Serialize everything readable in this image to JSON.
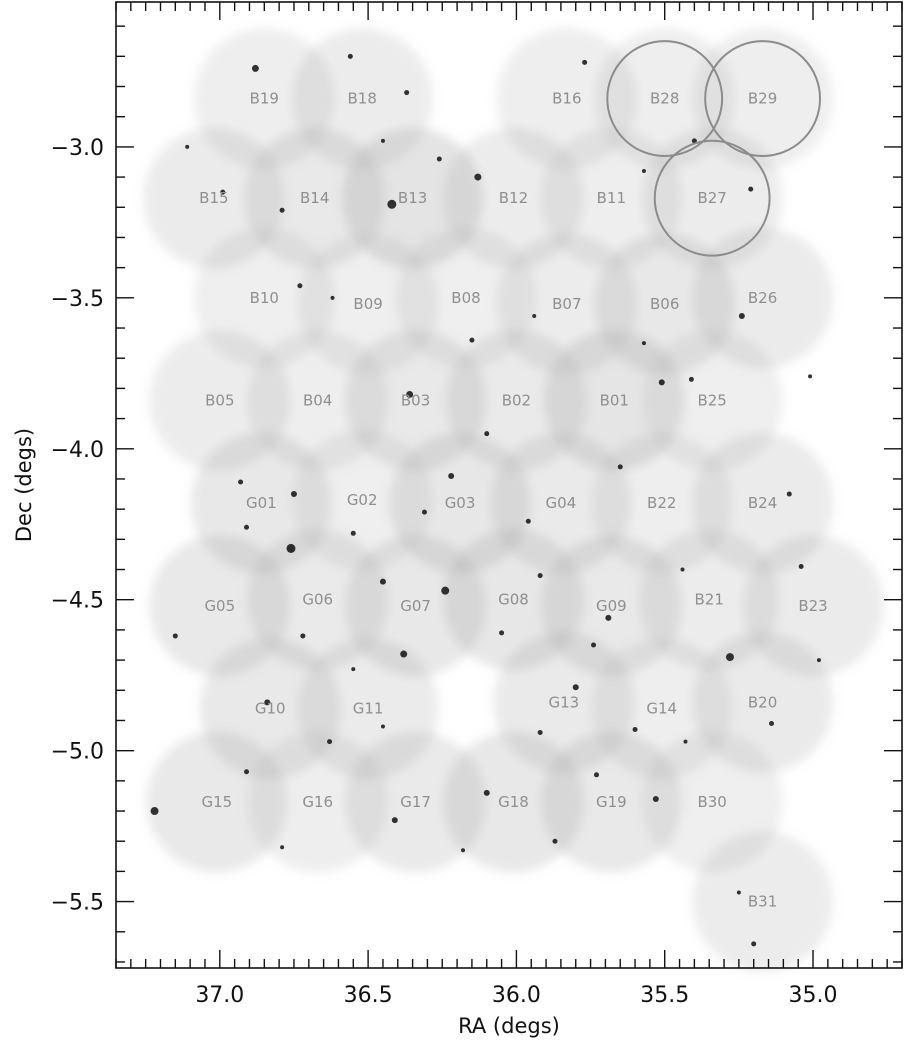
{
  "chart_data": {
    "type": "scatter",
    "title": "",
    "xlabel": "RA (degs)",
    "ylabel": "Dec (degs)",
    "xlim": [
      37.35,
      34.7
    ],
    "ylim": [
      -5.72,
      -2.52
    ],
    "x_ticks": [
      37.0,
      36.5,
      36.0,
      35.5,
      35.0
    ],
    "x_tick_labels": [
      "37.0",
      "36.5",
      "36.0",
      "35.5",
      "35.0"
    ],
    "y_ticks": [
      -3.0,
      -3.5,
      -4.0,
      -4.5,
      -5.0,
      -5.5
    ],
    "y_tick_labels": [
      "−3.0",
      "−3.5",
      "−4.0",
      "−4.5",
      "−5.0",
      "−5.5"
    ],
    "grid": false,
    "field_radius_deg": 0.22,
    "colors": {
      "field_light": "#d6d6d6",
      "field_dark": "#a9a9a9",
      "label": "#8f8f8f",
      "circle": "#8c8c8c",
      "axis": "#111111"
    },
    "fields": [
      {
        "name": "B19",
        "ra": 36.85,
        "dec": -2.84,
        "shade": 0.35
      },
      {
        "name": "B18",
        "ra": 36.52,
        "dec": -2.84,
        "shade": 0.4
      },
      {
        "name": "B16",
        "ra": 35.83,
        "dec": -2.84,
        "shade": 0.35
      },
      {
        "name": "B28",
        "ra": 35.5,
        "dec": -2.84,
        "shade": 0.35
      },
      {
        "name": "B29",
        "ra": 35.17,
        "dec": -2.84,
        "shade": 0.35
      },
      {
        "name": "B15",
        "ra": 37.02,
        "dec": -3.17,
        "shade": 0.45
      },
      {
        "name": "B14",
        "ra": 36.68,
        "dec": -3.17,
        "shade": 0.55
      },
      {
        "name": "B13",
        "ra": 36.35,
        "dec": -3.17,
        "shade": 0.8
      },
      {
        "name": "B12",
        "ra": 36.01,
        "dec": -3.17,
        "shade": 0.4
      },
      {
        "name": "B11",
        "ra": 35.68,
        "dec": -3.17,
        "shade": 0.35
      },
      {
        "name": "B27",
        "ra": 35.34,
        "dec": -3.17,
        "shade": 0.4
      },
      {
        "name": "B10",
        "ra": 36.85,
        "dec": -3.5,
        "shade": 0.3
      },
      {
        "name": "B09",
        "ra": 36.5,
        "dec": -3.52,
        "shade": 0.3
      },
      {
        "name": "B08",
        "ra": 36.17,
        "dec": -3.5,
        "shade": 0.3
      },
      {
        "name": "B07",
        "ra": 35.83,
        "dec": -3.52,
        "shade": 0.4
      },
      {
        "name": "B06",
        "ra": 35.5,
        "dec": -3.52,
        "shade": 0.6
      },
      {
        "name": "B26",
        "ra": 35.17,
        "dec": -3.5,
        "shade": 0.45
      },
      {
        "name": "B05",
        "ra": 37.0,
        "dec": -3.84,
        "shade": 0.4
      },
      {
        "name": "B04",
        "ra": 36.67,
        "dec": -3.84,
        "shade": 0.35
      },
      {
        "name": "B03",
        "ra": 36.34,
        "dec": -3.84,
        "shade": 0.55
      },
      {
        "name": "B02",
        "ra": 36.0,
        "dec": -3.84,
        "shade": 0.5
      },
      {
        "name": "B01",
        "ra": 35.67,
        "dec": -3.84,
        "shade": 0.75
      },
      {
        "name": "B25",
        "ra": 35.34,
        "dec": -3.84,
        "shade": 0.3
      },
      {
        "name": "G01",
        "ra": 36.86,
        "dec": -4.18,
        "shade": 0.6
      },
      {
        "name": "G02",
        "ra": 36.52,
        "dec": -4.17,
        "shade": 0.3
      },
      {
        "name": "G03",
        "ra": 36.19,
        "dec": -4.18,
        "shade": 0.65
      },
      {
        "name": "G04",
        "ra": 35.85,
        "dec": -4.18,
        "shade": 0.5
      },
      {
        "name": "B22",
        "ra": 35.51,
        "dec": -4.18,
        "shade": 0.35
      },
      {
        "name": "B24",
        "ra": 35.17,
        "dec": -4.18,
        "shade": 0.45
      },
      {
        "name": "G05",
        "ra": 37.0,
        "dec": -4.52,
        "shade": 0.55
      },
      {
        "name": "G06",
        "ra": 36.67,
        "dec": -4.5,
        "shade": 0.5
      },
      {
        "name": "G07",
        "ra": 36.34,
        "dec": -4.52,
        "shade": 0.6
      },
      {
        "name": "G08",
        "ra": 36.01,
        "dec": -4.5,
        "shade": 0.65
      },
      {
        "name": "G09",
        "ra": 35.68,
        "dec": -4.52,
        "shade": 0.55
      },
      {
        "name": "B21",
        "ra": 35.35,
        "dec": -4.5,
        "shade": 0.4
      },
      {
        "name": "B23",
        "ra": 35.0,
        "dec": -4.52,
        "shade": 0.45
      },
      {
        "name": "G10",
        "ra": 36.83,
        "dec": -4.86,
        "shade": 0.55
      },
      {
        "name": "G11",
        "ra": 36.5,
        "dec": -4.86,
        "shade": 0.45
      },
      {
        "name": "G13",
        "ra": 35.84,
        "dec": -4.84,
        "shade": 0.5
      },
      {
        "name": "G14",
        "ra": 35.51,
        "dec": -4.86,
        "shade": 0.35
      },
      {
        "name": "B20",
        "ra": 35.17,
        "dec": -4.84,
        "shade": 0.5
      },
      {
        "name": "G15",
        "ra": 37.01,
        "dec": -5.17,
        "shade": 0.55
      },
      {
        "name": "G16",
        "ra": 36.67,
        "dec": -5.17,
        "shade": 0.35
      },
      {
        "name": "G17",
        "ra": 36.34,
        "dec": -5.17,
        "shade": 0.5
      },
      {
        "name": "G18",
        "ra": 36.01,
        "dec": -5.17,
        "shade": 0.6
      },
      {
        "name": "G19",
        "ra": 35.68,
        "dec": -5.17,
        "shade": 0.55
      },
      {
        "name": "B30",
        "ra": 35.34,
        "dec": -5.17,
        "shade": 0.3
      },
      {
        "name": "B31",
        "ra": 35.17,
        "dec": -5.5,
        "shade": 0.4
      }
    ],
    "highlighted_fields": [
      "B28",
      "B29",
      "B27"
    ],
    "sources": [
      [
        36.88,
        -2.74,
        3.5
      ],
      [
        36.56,
        -2.7,
        2.5
      ],
      [
        36.37,
        -2.82,
        2.5
      ],
      [
        35.77,
        -2.72,
        2.5
      ],
      [
        35.4,
        -2.98,
        2.5
      ],
      [
        36.13,
        -3.1,
        3.5
      ],
      [
        36.26,
        -3.04,
        2.5
      ],
      [
        35.21,
        -3.14,
        2.5
      ],
      [
        36.99,
        -3.15,
        2.5
      ],
      [
        36.79,
        -3.21,
        2.5
      ],
      [
        36.42,
        -3.19,
        4.5
      ],
      [
        35.24,
        -3.56,
        3.0
      ],
      [
        36.73,
        -3.46,
        2.5
      ],
      [
        36.15,
        -3.64,
        2.5
      ],
      [
        35.51,
        -3.78,
        3.0
      ],
      [
        35.57,
        -3.65,
        2.0
      ],
      [
        36.36,
        -3.82,
        3.5
      ],
      [
        36.1,
        -3.95,
        2.5
      ],
      [
        35.41,
        -3.77,
        2.5
      ],
      [
        36.93,
        -4.11,
        2.5
      ],
      [
        36.75,
        -4.15,
        3.0
      ],
      [
        36.55,
        -4.28,
        2.5
      ],
      [
        36.22,
        -4.09,
        3.0
      ],
      [
        35.96,
        -4.24,
        2.5
      ],
      [
        35.65,
        -4.06,
        2.5
      ],
      [
        35.08,
        -4.15,
        2.5
      ],
      [
        36.76,
        -4.33,
        4.5
      ],
      [
        36.91,
        -4.26,
        2.5
      ],
      [
        36.24,
        -4.47,
        4.0
      ],
      [
        36.45,
        -4.44,
        3.0
      ],
      [
        35.92,
        -4.42,
        2.5
      ],
      [
        35.69,
        -4.56,
        3.0
      ],
      [
        35.28,
        -4.69,
        4.0
      ],
      [
        36.72,
        -4.62,
        2.5
      ],
      [
        36.38,
        -4.68,
        3.5
      ],
      [
        36.05,
        -4.61,
        2.5
      ],
      [
        35.74,
        -4.65,
        2.5
      ],
      [
        36.84,
        -4.84,
        3.0
      ],
      [
        36.63,
        -4.97,
        2.5
      ],
      [
        36.45,
        -4.92,
        2.0
      ],
      [
        35.92,
        -4.94,
        2.5
      ],
      [
        35.8,
        -4.79,
        3.0
      ],
      [
        35.14,
        -4.91,
        2.5
      ],
      [
        35.43,
        -4.97,
        2.0
      ],
      [
        37.22,
        -5.2,
        4.0
      ],
      [
        36.91,
        -5.07,
        2.5
      ],
      [
        36.41,
        -5.23,
        3.0
      ],
      [
        36.1,
        -5.14,
        3.0
      ],
      [
        35.87,
        -5.3,
        2.5
      ],
      [
        35.53,
        -5.16,
        3.0
      ],
      [
        35.73,
        -5.08,
        2.5
      ],
      [
        35.2,
        -5.64,
        2.5
      ],
      [
        35.25,
        -5.47,
        2.0
      ],
      [
        37.11,
        -3.0,
        2.0
      ],
      [
        36.62,
        -3.5,
        2.0
      ],
      [
        35.94,
        -3.56,
        2.0
      ],
      [
        35.01,
        -3.76,
        2.0
      ],
      [
        36.31,
        -4.21,
        2.5
      ],
      [
        35.44,
        -4.4,
        2.0
      ],
      [
        37.15,
        -4.62,
        2.5
      ],
      [
        36.55,
        -4.73,
        2.0
      ],
      [
        35.6,
        -4.93,
        2.5
      ],
      [
        36.79,
        -5.32,
        2.0
      ],
      [
        36.18,
        -5.33,
        2.0
      ],
      [
        35.04,
        -4.39,
        2.5
      ],
      [
        34.98,
        -4.7,
        2.0
      ],
      [
        35.57,
        -3.08,
        2.0
      ],
      [
        36.45,
        -2.98,
        2.0
      ]
    ]
  }
}
